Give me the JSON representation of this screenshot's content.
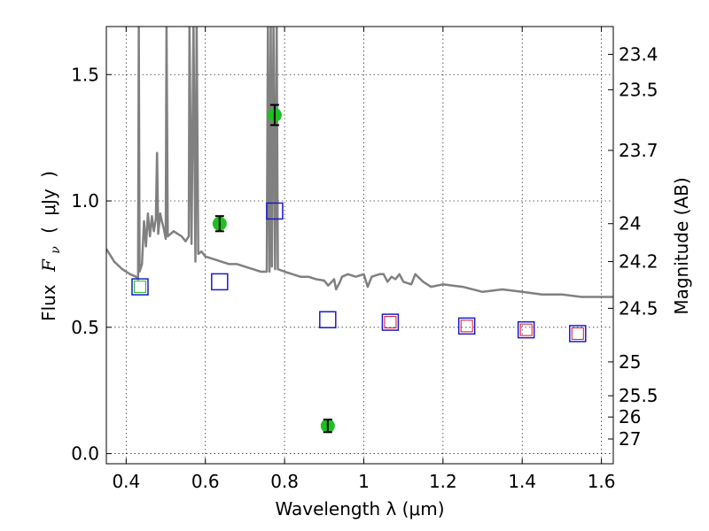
{
  "chart_data": {
    "type": "scatter",
    "xlabel": "Wavelength  λ (μm)",
    "ylabel_parts": {
      "prefix": "Flux",
      "symbol": "F",
      "subscript": "ν",
      "unit_open": "(",
      "unit": "μJy",
      "unit_close": ")"
    },
    "y2label": "Magnitude (AB)",
    "xlim": [
      0.35,
      1.63
    ],
    "ylim": [
      -0.04,
      1.69
    ],
    "grid": true,
    "x_ticks": [
      0.4,
      0.6,
      0.8,
      1.0,
      1.2,
      1.4,
      1.6
    ],
    "x_tick_labels": [
      "0.4",
      "0.6",
      "0.8",
      "1",
      "1.2",
      "1.4",
      "1.6"
    ],
    "y_ticks": [
      0.0,
      0.5,
      1.0,
      1.5
    ],
    "y_tick_labels": [
      "0.0",
      "0.5",
      "1.0",
      "1.5"
    ],
    "y2_ticks": [
      {
        "label": "23.4",
        "flux": 1.58
      },
      {
        "label": "23.5",
        "flux": 1.44
      },
      {
        "label": "23.7",
        "flux": 1.2
      },
      {
        "label": "24",
        "flux": 0.91
      },
      {
        "label": "24.2",
        "flux": 0.76
      },
      {
        "label": "24.5",
        "flux": 0.575
      },
      {
        "label": "25",
        "flux": 0.363
      },
      {
        "label": "25.5",
        "flux": 0.229
      },
      {
        "label": "26",
        "flux": 0.145
      },
      {
        "label": "27",
        "flux": 0.058
      }
    ],
    "series": [
      {
        "kind": "observed",
        "color": "#1fbf1f",
        "errbar_color": "#000000",
        "points": [
          {
            "x": 0.636,
            "y": 0.91,
            "err": 0.03
          },
          {
            "x": 0.775,
            "y": 1.34,
            "err": 0.04
          },
          {
            "x": 0.909,
            "y": 0.11,
            "err": 0.025
          }
        ]
      },
      {
        "kind": "model-photometry",
        "color": "#1a1acc",
        "points": [
          {
            "x": 0.435,
            "y": 0.66
          },
          {
            "x": 0.636,
            "y": 0.68
          },
          {
            "x": 0.775,
            "y": 0.96
          },
          {
            "x": 0.909,
            "y": 0.53
          },
          {
            "x": 1.067,
            "y": 0.52
          },
          {
            "x": 1.26,
            "y": 0.505
          },
          {
            "x": 1.41,
            "y": 0.49
          },
          {
            "x": 1.54,
            "y": 0.475
          }
        ]
      },
      {
        "kind": "model-photometry-inner",
        "color": "#e0102a",
        "points": [
          {
            "x": 1.067,
            "y": 0.52
          },
          {
            "x": 1.26,
            "y": 0.505
          },
          {
            "x": 1.41,
            "y": 0.49
          },
          {
            "x": 1.54,
            "y": 0.475
          }
        ]
      },
      {
        "kind": "model-photometry-inner",
        "color": "#1fbf1f",
        "points": [
          {
            "x": 0.435,
            "y": 0.66
          }
        ]
      },
      {
        "kind": "spectrum",
        "color": "#808080",
        "points": [
          [
            0.35,
            0.81
          ],
          [
            0.37,
            0.76
          ],
          [
            0.39,
            0.73
          ],
          [
            0.41,
            0.71
          ],
          [
            0.425,
            0.7
          ],
          [
            0.43,
            0.69
          ],
          [
            0.432,
            1.7
          ],
          [
            0.434,
            0.72
          ],
          [
            0.44,
            0.75
          ],
          [
            0.445,
            0.92
          ],
          [
            0.45,
            0.82
          ],
          [
            0.455,
            0.95
          ],
          [
            0.46,
            0.86
          ],
          [
            0.465,
            0.94
          ],
          [
            0.47,
            0.88
          ],
          [
            0.475,
            0.93
          ],
          [
            0.478,
            1.19
          ],
          [
            0.481,
            0.87
          ],
          [
            0.486,
            0.95
          ],
          [
            0.49,
            0.92
          ],
          [
            0.495,
            0.89
          ],
          [
            0.5,
            0.85
          ],
          [
            0.502,
            1.7
          ],
          [
            0.505,
            0.86
          ],
          [
            0.52,
            0.88
          ],
          [
            0.53,
            0.87
          ],
          [
            0.54,
            0.86
          ],
          [
            0.55,
            0.84
          ],
          [
            0.558,
            0.86
          ],
          [
            0.56,
            1.7
          ],
          [
            0.565,
            0.83
          ],
          [
            0.57,
            1.7
          ],
          [
            0.575,
            0.76
          ],
          [
            0.578,
            1.7
          ],
          [
            0.582,
            0.79
          ],
          [
            0.59,
            0.8
          ],
          [
            0.6,
            0.78
          ],
          [
            0.62,
            0.77
          ],
          [
            0.64,
            0.76
          ],
          [
            0.66,
            0.75
          ],
          [
            0.68,
            0.75
          ],
          [
            0.7,
            0.74
          ],
          [
            0.72,
            0.73
          ],
          [
            0.74,
            0.72
          ],
          [
            0.755,
            0.72
          ],
          [
            0.758,
            1.7
          ],
          [
            0.762,
            0.72
          ],
          [
            0.765,
            1.7
          ],
          [
            0.768,
            0.74
          ],
          [
            0.772,
            1.7
          ],
          [
            0.776,
            0.73
          ],
          [
            0.78,
            1.7
          ],
          [
            0.783,
            0.73
          ],
          [
            0.8,
            0.72
          ],
          [
            0.82,
            0.71
          ],
          [
            0.84,
            0.7
          ],
          [
            0.86,
            0.7
          ],
          [
            0.88,
            0.69
          ],
          [
            0.9,
            0.685
          ],
          [
            0.91,
            0.665
          ],
          [
            0.925,
            0.69
          ],
          [
            0.93,
            0.65
          ],
          [
            0.94,
            0.68
          ],
          [
            0.945,
            0.7
          ],
          [
            0.96,
            0.71
          ],
          [
            0.98,
            0.7
          ],
          [
            1.0,
            0.71
          ],
          [
            1.01,
            0.66
          ],
          [
            1.02,
            0.7
          ],
          [
            1.04,
            0.71
          ],
          [
            1.05,
            0.71
          ],
          [
            1.06,
            0.68
          ],
          [
            1.07,
            0.7
          ],
          [
            1.08,
            0.69
          ],
          [
            1.09,
            0.71
          ],
          [
            1.1,
            0.68
          ],
          [
            1.12,
            0.67
          ],
          [
            1.13,
            0.71
          ],
          [
            1.15,
            0.68
          ],
          [
            1.17,
            0.66
          ],
          [
            1.2,
            0.67
          ],
          [
            1.25,
            0.66
          ],
          [
            1.3,
            0.64
          ],
          [
            1.35,
            0.65
          ],
          [
            1.4,
            0.64
          ],
          [
            1.45,
            0.63
          ],
          [
            1.5,
            0.63
          ],
          [
            1.55,
            0.62
          ],
          [
            1.6,
            0.62
          ],
          [
            1.63,
            0.62
          ]
        ]
      }
    ]
  }
}
